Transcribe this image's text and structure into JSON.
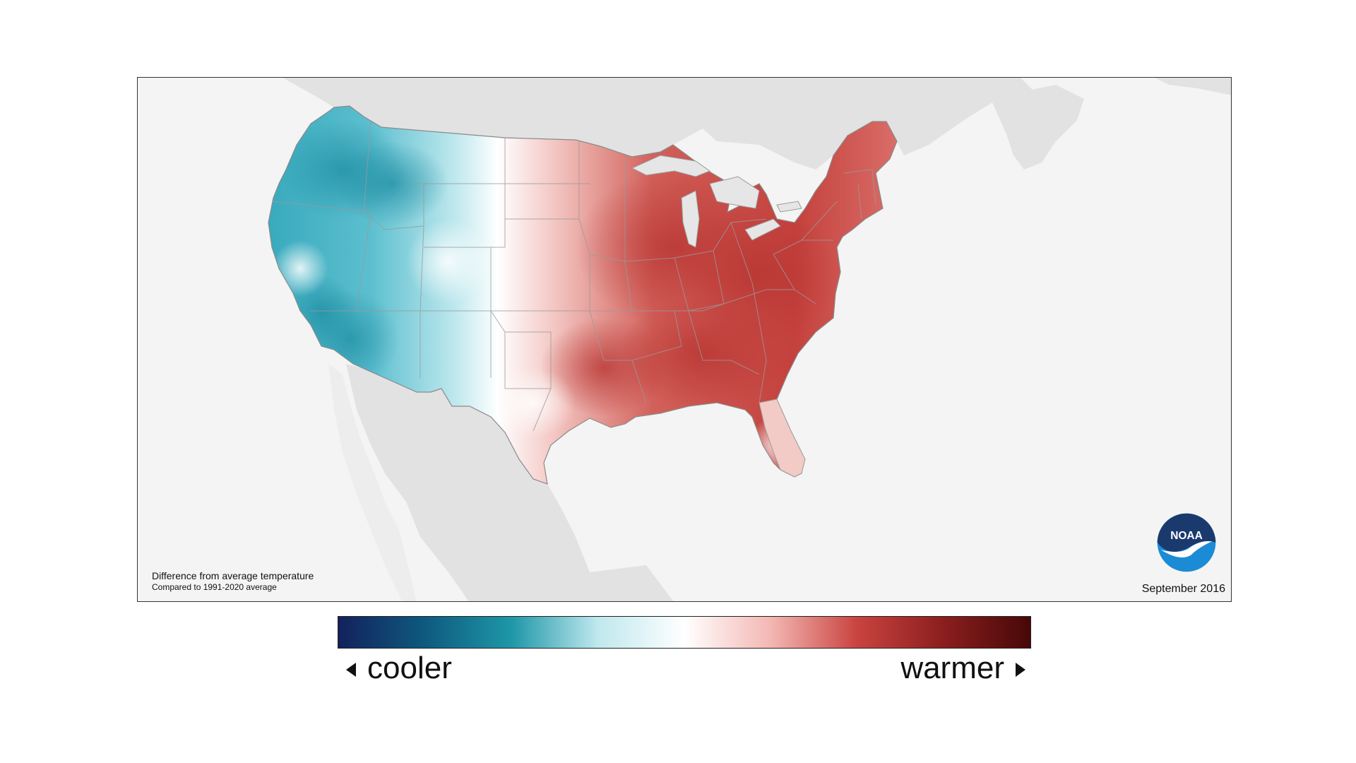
{
  "map": {
    "caption_line1": "Difference from average temperature",
    "caption_line2": "Compared to 1991-2020 average",
    "date_label": "September 2016",
    "logo_text": "NOAA"
  },
  "legend": {
    "cooler_label": "cooler",
    "warmer_label": "warmer",
    "stops": [
      "#13215c",
      "#0e5a7e",
      "#1e97a8",
      "#bfe8ee",
      "#ffffff",
      "#f3b7b3",
      "#c9433f",
      "#8b1e1e",
      "#470808"
    ]
  },
  "colors": {
    "land_outside": "#e2e2e2",
    "frame_bg": "#f4f4f4",
    "state_lines": "#9a9a9a",
    "lakes": "#e6e6e6",
    "noaa_dark": "#1a3a6e",
    "noaa_light": "#1b8bd6"
  }
}
